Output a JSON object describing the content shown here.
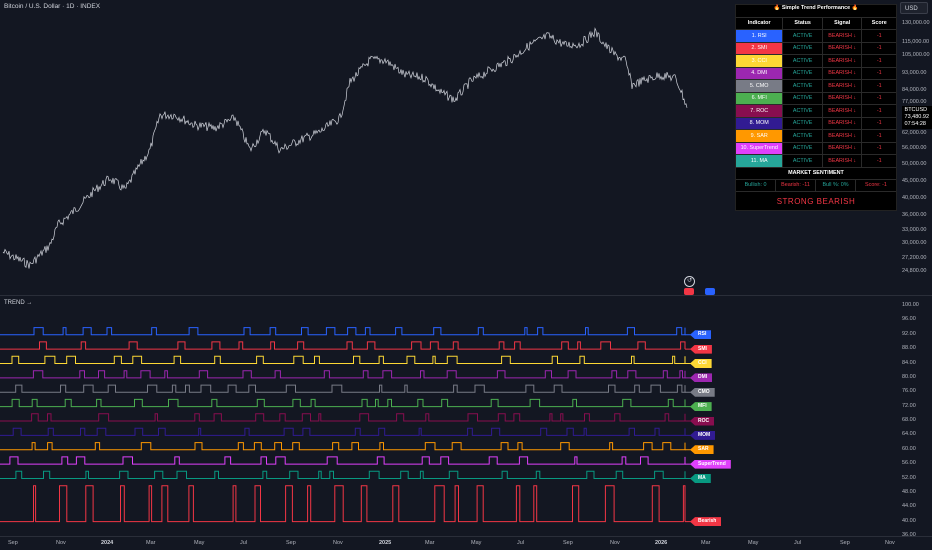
{
  "header": {
    "symbol_title": "Bitcoin / U.S. Dollar · 1D · INDEX",
    "currency": "USD",
    "indicator_name": "TREND →"
  },
  "price_axis": {
    "ticks": [
      "130,000.00",
      "115,000.00",
      "105,000.00",
      "93,000.00",
      "84,000.00",
      "77,000.00",
      "69,000.00",
      "62,000.00",
      "56,000.00",
      "50,000.00",
      "45,000.00",
      "40,000.00",
      "36,000.00",
      "33,000.00",
      "30,000.00",
      "27,200.00",
      "24,800.00"
    ],
    "last_symbol": "BTCUSD",
    "last_price": "73,480.92",
    "countdown": "07:54:28"
  },
  "indicator_axis": {
    "ticks": [
      "100.00",
      "96.00",
      "92.00",
      "88.00",
      "84.00",
      "80.00",
      "76.00",
      "72.00",
      "68.00",
      "64.00",
      "60.00",
      "56.00",
      "52.00",
      "48.00",
      "44.00",
      "40.00",
      "36.00"
    ]
  },
  "time_axis": {
    "ticks": [
      "Sep",
      "Nov",
      "2024",
      "Mar",
      "May",
      "Jul",
      "Sep",
      "Nov",
      "2025",
      "Mar",
      "May",
      "Jul",
      "Sep",
      "Nov",
      "2026",
      "Mar",
      "May",
      "Jul",
      "Sep",
      "Nov"
    ]
  },
  "table": {
    "title": "🔥 Simple Trend Performance 🔥",
    "headers": [
      "Indicator",
      "Status",
      "Signal",
      "Score"
    ],
    "rows": [
      {
        "name": "1. RSI",
        "status": "ACTIVE",
        "signal": "BEARISH ↓",
        "score": "-1",
        "color": "#2962ff"
      },
      {
        "name": "2. SMI",
        "status": "ACTIVE",
        "signal": "BEARISH ↓",
        "score": "-1",
        "color": "#f23645"
      },
      {
        "name": "3. CCI",
        "status": "ACTIVE",
        "signal": "BEARISH ↓",
        "score": "-1",
        "color": "#fdd835"
      },
      {
        "name": "4. DMI",
        "status": "ACTIVE",
        "signal": "BEARISH ↓",
        "score": "-1",
        "color": "#9c27b0"
      },
      {
        "name": "5. CMO",
        "status": "ACTIVE",
        "signal": "BEARISH ↓",
        "score": "-1",
        "color": "#787b86"
      },
      {
        "name": "6. MFI",
        "status": "ACTIVE",
        "signal": "BEARISH ↓",
        "score": "-1",
        "color": "#4caf50"
      },
      {
        "name": "7. ROC",
        "status": "ACTIVE",
        "signal": "BEARISH ↓",
        "score": "-1",
        "color": "#880e4f"
      },
      {
        "name": "8. MOM",
        "status": "ACTIVE",
        "signal": "BEARISH ↓",
        "score": "-1",
        "color": "#311b92"
      },
      {
        "name": "9. SAR",
        "status": "ACTIVE",
        "signal": "BEARISH ↓",
        "score": "-1",
        "color": "#ff9800"
      },
      {
        "name": "10. SuperTrend",
        "status": "ACTIVE",
        "signal": "BEARISH ↓",
        "score": "-1",
        "color": "#e040fb"
      },
      {
        "name": "11. MA",
        "status": "ACTIVE",
        "signal": "BEARISH ↓",
        "score": "-1",
        "color": "#26a69a"
      }
    ],
    "sentiment_title": "MARKET SENTIMENT",
    "bullish": "Bullish: 0",
    "bearish": "Bearish: -11",
    "bull_pct": "Bull %: 0%",
    "score": "Score: -1",
    "verdict": "STRONG BEARISH"
  },
  "indicator_lines": [
    {
      "label": "RSI",
      "color": "#2962ff",
      "base": 92
    },
    {
      "label": "SMI",
      "color": "#f23645",
      "base": 88
    },
    {
      "label": "CCI",
      "color": "#fdd835",
      "base": 84
    },
    {
      "label": "DMI",
      "color": "#9c27b0",
      "base": 80
    },
    {
      "label": "CMO",
      "color": "#787b86",
      "base": 76
    },
    {
      "label": "MFI",
      "color": "#4caf50",
      "base": 72
    },
    {
      "label": "ROC",
      "color": "#880e4f",
      "base": 68
    },
    {
      "label": "MOM",
      "color": "#311b92",
      "base": 64
    },
    {
      "label": "SAR",
      "color": "#ff9800",
      "base": 60
    },
    {
      "label": "SuperTrend",
      "color": "#e040fb",
      "base": 56
    },
    {
      "label": "MA",
      "color": "#089981",
      "base": 52
    },
    {
      "label": "Bearish",
      "color": "#f23645",
      "base": 40
    }
  ],
  "colors": {
    "background": "#131722",
    "bearish": "#f23645",
    "active": "#26a69a"
  }
}
